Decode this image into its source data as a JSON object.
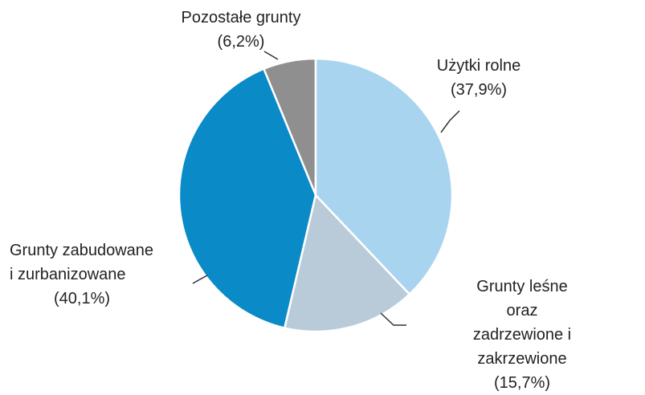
{
  "chart_data": {
    "type": "pie",
    "categories": [
      "Użytki rolne",
      "Grunty leśne oraz\nzadrzewione i zakrzewione",
      "Grunty zabudowane\ni zurbanizowane",
      "Pozostałe grunty"
    ],
    "values": [
      37.9,
      15.7,
      40.1,
      6.2
    ],
    "value_labels": [
      "(37,9%)",
      "(15,7%)",
      "(40,1%)",
      "(6,2%)"
    ],
    "colors": [
      "#a9d4ef",
      "#b9cbd9",
      "#0a8ac7",
      "#8f8f8f"
    ]
  }
}
